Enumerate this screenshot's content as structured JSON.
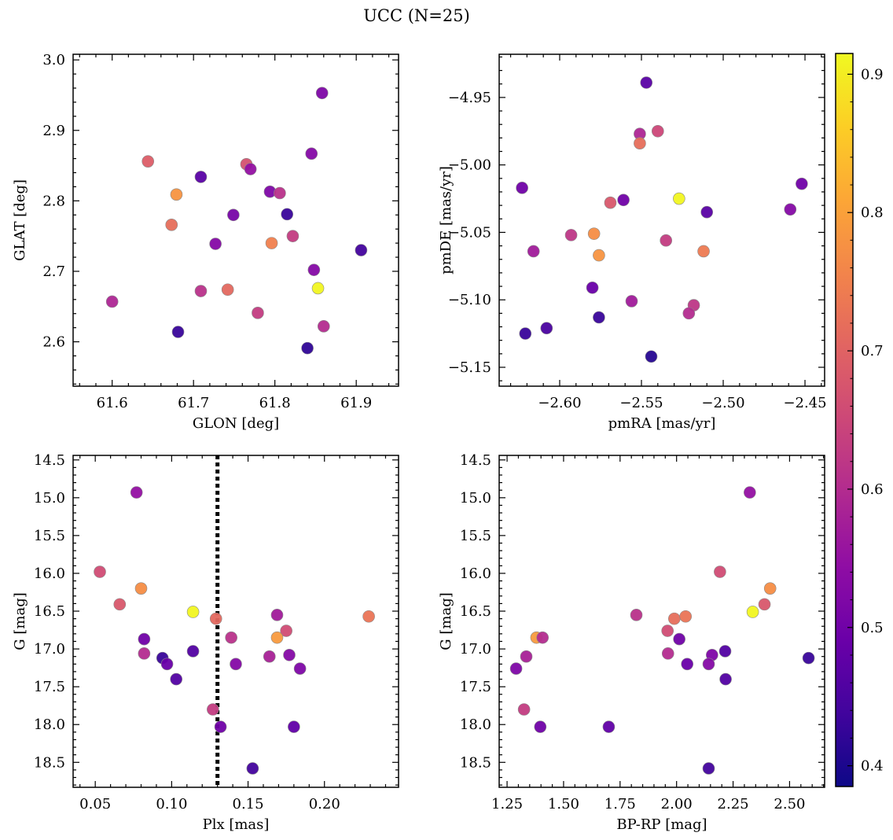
{
  "suptitle": "UCC (N=25)",
  "colorbar": {
    "min": 0.385,
    "max": 0.915,
    "ticks": [
      0.4,
      0.5,
      0.6,
      0.7,
      0.8,
      0.9
    ],
    "tick_labels": [
      "0.4",
      "0.5",
      "0.6",
      "0.7",
      "0.8",
      "0.9"
    ],
    "colormap": "plasma"
  },
  "chart_data": [
    {
      "type": "scatter",
      "title": "",
      "xlabel": "GLON [deg]",
      "ylabel": "GLAT [deg]",
      "xlim": [
        61.552,
        61.952
      ],
      "ylim": [
        2.537,
        3.008
      ],
      "xticks": [
        61.6,
        61.7,
        61.8,
        61.9
      ],
      "xtick_labels": [
        "61.6",
        "61.7",
        "61.8",
        "61.9"
      ],
      "yticks": [
        2.6,
        2.7,
        2.8,
        2.9,
        3.0
      ],
      "ytick_labels": [
        "2.6",
        "2.7",
        "2.8",
        "2.9",
        "3.0"
      ],
      "points": [
        {
          "x": 61.858,
          "y": 2.953,
          "c": 0.52
        },
        {
          "x": 61.644,
          "y": 2.856,
          "c": 0.69
        },
        {
          "x": 61.765,
          "y": 2.852,
          "c": 0.67
        },
        {
          "x": 61.77,
          "y": 2.845,
          "c": 0.55
        },
        {
          "x": 61.845,
          "y": 2.867,
          "c": 0.53
        },
        {
          "x": 61.709,
          "y": 2.834,
          "c": 0.47
        },
        {
          "x": 61.794,
          "y": 2.813,
          "c": 0.52
        },
        {
          "x": 61.806,
          "y": 2.811,
          "c": 0.61
        },
        {
          "x": 61.679,
          "y": 2.809,
          "c": 0.78
        },
        {
          "x": 61.749,
          "y": 2.78,
          "c": 0.51
        },
        {
          "x": 61.815,
          "y": 2.781,
          "c": 0.43
        },
        {
          "x": 61.673,
          "y": 2.766,
          "c": 0.72
        },
        {
          "x": 61.822,
          "y": 2.75,
          "c": 0.63
        },
        {
          "x": 61.796,
          "y": 2.74,
          "c": 0.75
        },
        {
          "x": 61.727,
          "y": 2.739,
          "c": 0.53
        },
        {
          "x": 61.906,
          "y": 2.73,
          "c": 0.44
        },
        {
          "x": 61.848,
          "y": 2.702,
          "c": 0.53
        },
        {
          "x": 61.853,
          "y": 2.676,
          "c": 0.91
        },
        {
          "x": 61.742,
          "y": 2.674,
          "c": 0.71
        },
        {
          "x": 61.709,
          "y": 2.672,
          "c": 0.61
        },
        {
          "x": 61.6,
          "y": 2.657,
          "c": 0.59
        },
        {
          "x": 61.779,
          "y": 2.641,
          "c": 0.63
        },
        {
          "x": 61.86,
          "y": 2.622,
          "c": 0.6
        },
        {
          "x": 61.681,
          "y": 2.614,
          "c": 0.43
        },
        {
          "x": 61.84,
          "y": 2.591,
          "c": 0.42
        }
      ]
    },
    {
      "type": "scatter",
      "title": "",
      "xlabel": "pmRA [mas/yr]",
      "ylabel": "pmDE [mas/yr]",
      "xlim": [
        -2.637,
        -2.438
      ],
      "ylim": [
        -5.164,
        -4.918
      ],
      "xticks": [
        -2.6,
        -2.55,
        -2.5,
        -2.45
      ],
      "xtick_labels": [
        "−2.60",
        "−2.55",
        "−2.50",
        "−2.45"
      ],
      "yticks": [
        -4.95,
        -5.0,
        -5.05,
        -5.1,
        -5.15
      ],
      "ytick_labels": [
        "−4.95",
        "−5.00",
        "−5.05",
        "−5.10",
        "−5.15"
      ],
      "points": [
        {
          "x": -2.547,
          "y": -4.939,
          "c": 0.47
        },
        {
          "x": -2.54,
          "y": -4.975,
          "c": 0.65
        },
        {
          "x": -2.551,
          "y": -4.977,
          "c": 0.59
        },
        {
          "x": -2.551,
          "y": -4.984,
          "c": 0.72
        },
        {
          "x": -2.623,
          "y": -5.017,
          "c": 0.5
        },
        {
          "x": -2.452,
          "y": -5.014,
          "c": 0.5
        },
        {
          "x": -2.527,
          "y": -5.025,
          "c": 0.91
        },
        {
          "x": -2.561,
          "y": -5.026,
          "c": 0.5
        },
        {
          "x": -2.569,
          "y": -5.028,
          "c": 0.68
        },
        {
          "x": -2.459,
          "y": -5.033,
          "c": 0.53
        },
        {
          "x": -2.51,
          "y": -5.035,
          "c": 0.47
        },
        {
          "x": -2.579,
          "y": -5.051,
          "c": 0.77
        },
        {
          "x": -2.593,
          "y": -5.052,
          "c": 0.62
        },
        {
          "x": -2.535,
          "y": -5.056,
          "c": 0.63
        },
        {
          "x": -2.616,
          "y": -5.064,
          "c": 0.57
        },
        {
          "x": -2.512,
          "y": -5.064,
          "c": 0.74
        },
        {
          "x": -2.576,
          "y": -5.067,
          "c": 0.78
        },
        {
          "x": -2.58,
          "y": -5.091,
          "c": 0.49
        },
        {
          "x": -2.556,
          "y": -5.101,
          "c": 0.57
        },
        {
          "x": -2.518,
          "y": -5.104,
          "c": 0.62
        },
        {
          "x": -2.521,
          "y": -5.11,
          "c": 0.6
        },
        {
          "x": -2.576,
          "y": -5.113,
          "c": 0.43
        },
        {
          "x": -2.608,
          "y": -5.121,
          "c": 0.45
        },
        {
          "x": -2.621,
          "y": -5.125,
          "c": 0.43
        },
        {
          "x": -2.544,
          "y": -5.142,
          "c": 0.41
        }
      ]
    },
    {
      "type": "scatter",
      "title": "",
      "xlabel": "Plx [mas]",
      "ylabel": "G [mag]",
      "xlim": [
        0.0355,
        0.2485
      ],
      "ylim": [
        18.83,
        14.44
      ],
      "xticks": [
        0.05,
        0.1,
        0.15,
        0.2
      ],
      "xtick_labels": [
        "0.05",
        "0.10",
        "0.15",
        "0.20"
      ],
      "yticks": [
        14.5,
        15.0,
        15.5,
        16.0,
        16.5,
        17.0,
        17.5,
        18.0,
        18.5
      ],
      "ytick_labels": [
        "14.5",
        "15.0",
        "15.5",
        "16.0",
        "16.5",
        "17.0",
        "17.5",
        "18.0",
        "18.5"
      ],
      "vline": 0.13,
      "points": [
        {
          "x": 0.077,
          "y": 14.93,
          "c": 0.55
        },
        {
          "x": 0.053,
          "y": 15.98,
          "c": 0.66
        },
        {
          "x": 0.08,
          "y": 16.2,
          "c": 0.77
        },
        {
          "x": 0.066,
          "y": 16.41,
          "c": 0.68
        },
        {
          "x": 0.114,
          "y": 16.51,
          "c": 0.91
        },
        {
          "x": 0.229,
          "y": 16.57,
          "c": 0.73
        },
        {
          "x": 0.169,
          "y": 16.55,
          "c": 0.57
        },
        {
          "x": 0.129,
          "y": 16.6,
          "c": 0.71
        },
        {
          "x": 0.175,
          "y": 16.76,
          "c": 0.66
        },
        {
          "x": 0.169,
          "y": 16.85,
          "c": 0.79
        },
        {
          "x": 0.139,
          "y": 16.85,
          "c": 0.61
        },
        {
          "x": 0.082,
          "y": 16.87,
          "c": 0.5
        },
        {
          "x": 0.114,
          "y": 17.03,
          "c": 0.46
        },
        {
          "x": 0.082,
          "y": 17.06,
          "c": 0.6
        },
        {
          "x": 0.164,
          "y": 17.1,
          "c": 0.58
        },
        {
          "x": 0.177,
          "y": 17.08,
          "c": 0.53
        },
        {
          "x": 0.094,
          "y": 17.12,
          "c": 0.43
        },
        {
          "x": 0.097,
          "y": 17.2,
          "c": 0.49
        },
        {
          "x": 0.142,
          "y": 17.2,
          "c": 0.53
        },
        {
          "x": 0.184,
          "y": 17.26,
          "c": 0.52
        },
        {
          "x": 0.103,
          "y": 17.4,
          "c": 0.46
        },
        {
          "x": 0.127,
          "y": 17.8,
          "c": 0.63
        },
        {
          "x": 0.132,
          "y": 18.03,
          "c": 0.5
        },
        {
          "x": 0.18,
          "y": 18.03,
          "c": 0.48
        },
        {
          "x": 0.153,
          "y": 18.58,
          "c": 0.44
        }
      ]
    },
    {
      "type": "scatter",
      "title": "",
      "xlabel": "BP-RP [mag]",
      "ylabel": "G [mag]",
      "xlim": [
        1.215,
        2.655
      ],
      "ylim": [
        18.83,
        14.44
      ],
      "xticks": [
        1.25,
        1.5,
        1.75,
        2.0,
        2.25,
        2.5
      ],
      "xtick_labels": [
        "1.25",
        "1.50",
        "1.75",
        "2.00",
        "2.25",
        "2.50"
      ],
      "yticks": [
        14.5,
        15.0,
        15.5,
        16.0,
        16.5,
        17.0,
        17.5,
        18.0,
        18.5
      ],
      "ytick_labels": [
        "14.5",
        "15.0",
        "15.5",
        "16.0",
        "16.5",
        "17.0",
        "17.5",
        "18.0",
        "18.5"
      ],
      "points": [
        {
          "x": 2.324,
          "y": 14.93,
          "c": 0.55
        },
        {
          "x": 2.192,
          "y": 15.98,
          "c": 0.66
        },
        {
          "x": 2.414,
          "y": 16.2,
          "c": 0.77
        },
        {
          "x": 2.389,
          "y": 16.41,
          "c": 0.68
        },
        {
          "x": 2.337,
          "y": 16.51,
          "c": 0.91
        },
        {
          "x": 1.822,
          "y": 16.55,
          "c": 0.61
        },
        {
          "x": 1.99,
          "y": 16.6,
          "c": 0.72
        },
        {
          "x": 2.04,
          "y": 16.57,
          "c": 0.73
        },
        {
          "x": 1.96,
          "y": 16.76,
          "c": 0.66
        },
        {
          "x": 1.38,
          "y": 16.85,
          "c": 0.79
        },
        {
          "x": 1.407,
          "y": 16.85,
          "c": 0.6
        },
        {
          "x": 2.012,
          "y": 16.87,
          "c": 0.5
        },
        {
          "x": 2.215,
          "y": 17.03,
          "c": 0.46
        },
        {
          "x": 1.962,
          "y": 17.06,
          "c": 0.6
        },
        {
          "x": 2.157,
          "y": 17.08,
          "c": 0.52
        },
        {
          "x": 1.335,
          "y": 17.1,
          "c": 0.58
        },
        {
          "x": 2.584,
          "y": 17.12,
          "c": 0.43
        },
        {
          "x": 2.047,
          "y": 17.2,
          "c": 0.49
        },
        {
          "x": 2.142,
          "y": 17.2,
          "c": 0.53
        },
        {
          "x": 1.29,
          "y": 17.26,
          "c": 0.52
        },
        {
          "x": 2.217,
          "y": 17.4,
          "c": 0.46
        },
        {
          "x": 1.325,
          "y": 17.8,
          "c": 0.63
        },
        {
          "x": 1.397,
          "y": 18.03,
          "c": 0.5
        },
        {
          "x": 1.7,
          "y": 18.03,
          "c": 0.48
        },
        {
          "x": 2.142,
          "y": 18.58,
          "c": 0.44
        }
      ]
    }
  ]
}
